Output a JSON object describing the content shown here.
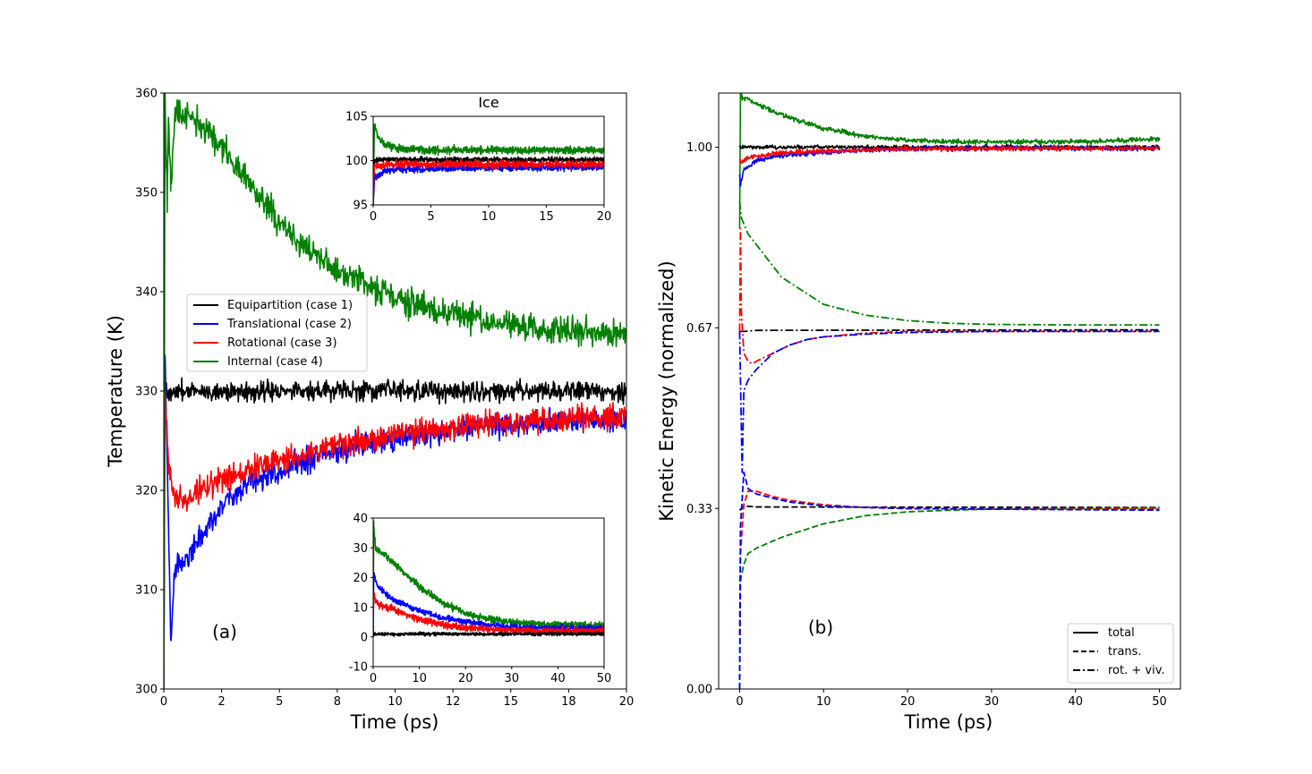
{
  "colors": {
    "black": "#000000",
    "blue": "#0000ff",
    "red": "#ff0000",
    "green": "#008000"
  },
  "chart_data": [
    {
      "id": "main_a",
      "type": "line",
      "panel_label": "(a)",
      "xlabel": "Time (ps)",
      "ylabel": "Temperature (K)",
      "xlim": [
        0,
        20
      ],
      "ylim": [
        300,
        360
      ],
      "xticks": [
        0,
        2.5,
        5,
        7.5,
        10,
        12.5,
        15,
        17.5,
        20
      ],
      "xtick_labels": [
        "0",
        "2",
        "5",
        "8",
        "10",
        "12",
        "15",
        "18",
        "20"
      ],
      "yticks": [
        300,
        310,
        320,
        330,
        340,
        350,
        360
      ],
      "ytick_labels": [
        "300",
        "310",
        "320",
        "330",
        "340",
        "350",
        "360"
      ],
      "legend_position": "center-left",
      "series": [
        {
          "name": "Equipartition (case 1)",
          "color": "#000000",
          "noise": 0.7,
          "x": [
            0,
            0.05,
            0.2,
            0.5,
            1,
            2,
            4,
            6,
            8,
            10,
            12,
            14,
            16,
            18,
            20
          ],
          "y": [
            300,
            330,
            329.8,
            330,
            330,
            330,
            330,
            330,
            330,
            330,
            330,
            330,
            330,
            330,
            330
          ]
        },
        {
          "name": "Translational (case 2)",
          "color": "#0000ff",
          "noise": 0.9,
          "x": [
            0,
            0.05,
            0.3,
            0.5,
            1,
            1.5,
            2,
            3,
            4,
            5,
            6,
            8,
            10,
            12,
            14,
            16,
            18,
            20
          ],
          "y": [
            300,
            335,
            305,
            312,
            313,
            315,
            317,
            319.5,
            321,
            322,
            323,
            324.3,
            325.2,
            326,
            326.5,
            326.8,
            327,
            327
          ]
        },
        {
          "name": "Rotational (case 3)",
          "color": "#ff0000",
          "noise": 0.9,
          "x": [
            0,
            0.05,
            0.2,
            0.4,
            0.7,
            1,
            1.5,
            2,
            3,
            4,
            5,
            6,
            8,
            10,
            12,
            14,
            16,
            18,
            20
          ],
          "y": [
            300,
            330,
            323,
            320,
            319,
            319,
            319.8,
            320.5,
            321.5,
            322.3,
            323,
            323.7,
            324.8,
            325.6,
            326.3,
            326.8,
            327.1,
            327.3,
            327.5
          ]
        },
        {
          "name": "Internal (case 4)",
          "color": "#008000",
          "noise": 1.0,
          "x": [
            0,
            0.05,
            0.15,
            0.2,
            0.3,
            0.5,
            1,
            1.5,
            2,
            3,
            4,
            5,
            6,
            7,
            8,
            10,
            12,
            14,
            16,
            18,
            20
          ],
          "y": [
            300,
            360,
            349,
            358,
            351,
            358,
            358,
            357,
            356,
            353,
            350,
            347,
            344.5,
            343,
            341.5,
            339.5,
            338,
            337,
            336.5,
            336,
            335.5
          ]
        }
      ]
    },
    {
      "id": "inset_ice",
      "type": "line",
      "title": "Ice",
      "xlim": [
        0,
        20
      ],
      "ylim": [
        95,
        105
      ],
      "xticks": [
        0,
        5,
        10,
        15,
        20
      ],
      "xtick_labels": [
        "0",
        "5",
        "10",
        "15",
        "20"
      ],
      "yticks": [
        95,
        100,
        105
      ],
      "ytick_labels": [
        "95",
        "100",
        "105"
      ],
      "series": [
        {
          "color": "#008000",
          "noise": 0.3,
          "x": [
            0,
            0.1,
            0.5,
            1,
            2,
            5,
            10,
            20
          ],
          "y": [
            95,
            104,
            102.5,
            101.8,
            101.4,
            101.2,
            101.2,
            101.2
          ]
        },
        {
          "color": "#000000",
          "noise": 0.2,
          "x": [
            0,
            0.1,
            0.5,
            1,
            2,
            20
          ],
          "y": [
            95,
            100,
            100.1,
            100.1,
            100.1,
            100.1
          ]
        },
        {
          "color": "#0000ff",
          "noise": 0.25,
          "x": [
            0,
            0.1,
            0.5,
            1,
            2,
            5,
            10,
            15,
            20
          ],
          "y": [
            95,
            98,
            98.3,
            98.8,
            99.0,
            99.1,
            99.2,
            99.2,
            99.3
          ]
        },
        {
          "color": "#ff0000",
          "noise": 0.3,
          "x": [
            0,
            0.1,
            0.5,
            1,
            2,
            5,
            10,
            20
          ],
          "y": [
            95,
            99.5,
            99.4,
            99.5,
            99.6,
            99.6,
            99.6,
            99.6
          ]
        }
      ]
    },
    {
      "id": "inset_lower",
      "type": "line",
      "xlim": [
        0,
        50
      ],
      "ylim": [
        -10,
        40
      ],
      "xticks": [
        0,
        10,
        20,
        30,
        40,
        50
      ],
      "xtick_labels": [
        "0",
        "10",
        "20",
        "30",
        "40",
        "50"
      ],
      "yticks": [
        -10,
        0,
        10,
        20,
        30,
        40
      ],
      "ytick_labels": [
        "-10",
        "0",
        "10",
        "20",
        "30",
        "40"
      ],
      "series": [
        {
          "color": "#008000",
          "noise": 0.8,
          "x": [
            0,
            0.1,
            0.5,
            1,
            3,
            5,
            10,
            15,
            20,
            25,
            30,
            35,
            40,
            50
          ],
          "y": [
            0,
            38,
            30,
            29,
            27,
            24,
            17,
            11.5,
            8,
            6,
            5,
            4.5,
            4,
            4
          ]
        },
        {
          "color": "#0000ff",
          "noise": 0.7,
          "x": [
            0,
            0.1,
            0.5,
            1,
            3,
            5,
            10,
            15,
            20,
            25,
            30,
            35,
            40,
            50
          ],
          "y": [
            0,
            22,
            19,
            17,
            14,
            12,
            9,
            6.5,
            5,
            4,
            3.5,
            3,
            3,
            2.8
          ]
        },
        {
          "color": "#ff0000",
          "noise": 0.8,
          "x": [
            0,
            0.1,
            0.5,
            1,
            3,
            5,
            10,
            15,
            20,
            25,
            30,
            35,
            40,
            50
          ],
          "y": [
            0,
            15,
            12,
            11,
            10,
            9,
            6,
            4,
            3,
            2.5,
            2.2,
            2,
            2,
            2
          ]
        },
        {
          "color": "#000000",
          "noise": 0.4,
          "x": [
            0,
            0.1,
            0.5,
            50
          ],
          "y": [
            0,
            1,
            1,
            1
          ]
        }
      ]
    },
    {
      "id": "main_b",
      "type": "line",
      "panel_label": "(b)",
      "xlabel": "Time (ps)",
      "ylabel": "Kinetic Energy (normalized)",
      "xlim": [
        -2.5,
        52.5
      ],
      "ylim": [
        0,
        1.1
      ],
      "xticks": [
        0,
        10,
        20,
        30,
        40,
        50
      ],
      "xtick_labels": [
        "0",
        "10",
        "20",
        "30",
        "40",
        "50"
      ],
      "yticks": [
        0,
        0.3333,
        0.6667,
        1.0
      ],
      "ytick_labels": [
        "0.00",
        "0.33",
        "0.67",
        "1.00"
      ],
      "legend_position": "lower-right",
      "legend": [
        {
          "label": "total",
          "style": "solid"
        },
        {
          "label": "trans.",
          "style": "dashed"
        },
        {
          "label": "rot. + viv.",
          "style": "dashdot"
        }
      ],
      "series": [
        {
          "color": "#008000",
          "style": "solid",
          "noise": 0.003,
          "x": [
            0,
            0.1,
            0.3,
            1,
            2,
            5,
            10,
            15,
            20,
            25,
            30,
            40,
            50
          ],
          "y": [
            0.85,
            1.1,
            1.09,
            1.09,
            1.08,
            1.06,
            1.035,
            1.02,
            1.013,
            1.01,
            1.01,
            1.01,
            1.015
          ]
        },
        {
          "color": "#000000",
          "style": "solid",
          "noise": 0.0025,
          "x": [
            0,
            0.1,
            50
          ],
          "y": [
            1.0,
            1.0,
            1.0
          ]
        },
        {
          "color": "#0000ff",
          "style": "solid",
          "noise": 0.003,
          "x": [
            0,
            0.1,
            0.5,
            1,
            2,
            5,
            10,
            15,
            20,
            30,
            40,
            50
          ],
          "y": [
            0.95,
            0.93,
            0.96,
            0.965,
            0.975,
            0.985,
            0.99,
            0.995,
            0.997,
            0.998,
            0.998,
            0.997
          ]
        },
        {
          "color": "#ff0000",
          "style": "solid",
          "noise": 0.003,
          "x": [
            0,
            0.1,
            0.5,
            1,
            2,
            5,
            10,
            20,
            30,
            40,
            50
          ],
          "y": [
            0.98,
            0.97,
            0.975,
            0.98,
            0.983,
            0.99,
            0.993,
            0.997,
            0.998,
            0.998,
            0.998
          ]
        },
        {
          "color": "#000000",
          "style": "dashdot",
          "noise": 0,
          "x": [
            0,
            0.5,
            2,
            50
          ],
          "y": [
            0.66,
            0.66,
            0.662,
            0.663
          ]
        },
        {
          "color": "#008000",
          "style": "dashdot",
          "noise": 0,
          "x": [
            0,
            0.2,
            1,
            2,
            5,
            10,
            15,
            20,
            25,
            30,
            40,
            50
          ],
          "y": [
            0.9,
            0.87,
            0.84,
            0.82,
            0.76,
            0.71,
            0.69,
            0.68,
            0.675,
            0.673,
            0.672,
            0.672
          ]
        },
        {
          "color": "#ff0000",
          "style": "dashdot",
          "noise": 0,
          "x": [
            0,
            0.1,
            0.2,
            0.5,
            1,
            1.5,
            2,
            4,
            6,
            8,
            10,
            15,
            20,
            30,
            50
          ],
          "y": [
            0.66,
            0.85,
            0.7,
            0.62,
            0.605,
            0.6,
            0.605,
            0.62,
            0.635,
            0.645,
            0.65,
            0.657,
            0.66,
            0.66,
            0.66
          ]
        },
        {
          "color": "#0000ff",
          "style": "dashdot",
          "noise": 0,
          "x": [
            0,
            0.3,
            0.5,
            1,
            2,
            4,
            6,
            8,
            10,
            15,
            20,
            30,
            50
          ],
          "y": [
            0.66,
            0.4,
            0.55,
            0.57,
            0.59,
            0.62,
            0.635,
            0.645,
            0.65,
            0.655,
            0.658,
            0.66,
            0.66
          ]
        },
        {
          "color": "#000000",
          "style": "dashed",
          "noise": 0,
          "x": [
            0,
            0.5,
            2,
            50
          ],
          "y": [
            0.33,
            0.338,
            0.336,
            0.335
          ]
        },
        {
          "color": "#008000",
          "style": "dashed",
          "noise": 0,
          "x": [
            0,
            0.1,
            0.5,
            1,
            2,
            5,
            10,
            15,
            20,
            25,
            30,
            40,
            50
          ],
          "y": [
            0,
            0.2,
            0.23,
            0.25,
            0.26,
            0.28,
            0.305,
            0.32,
            0.327,
            0.33,
            0.332,
            0.333,
            0.334
          ]
        },
        {
          "color": "#ff0000",
          "style": "dashed",
          "noise": 0,
          "x": [
            0,
            0.1,
            0.5,
            1,
            2,
            4,
            6,
            10,
            15,
            20,
            30,
            50
          ],
          "y": [
            0.1,
            0.25,
            0.34,
            0.365,
            0.365,
            0.355,
            0.348,
            0.34,
            0.335,
            0.333,
            0.332,
            0.332
          ]
        },
        {
          "color": "#0000ff",
          "style": "dashed",
          "noise": 0,
          "x": [
            0,
            0.1,
            0.5,
            1,
            2,
            4,
            6,
            10,
            15,
            20,
            30,
            50
          ],
          "y": [
            0,
            0.3,
            0.4,
            0.37,
            0.36,
            0.352,
            0.345,
            0.338,
            0.335,
            0.333,
            0.332,
            0.33
          ]
        }
      ]
    }
  ]
}
